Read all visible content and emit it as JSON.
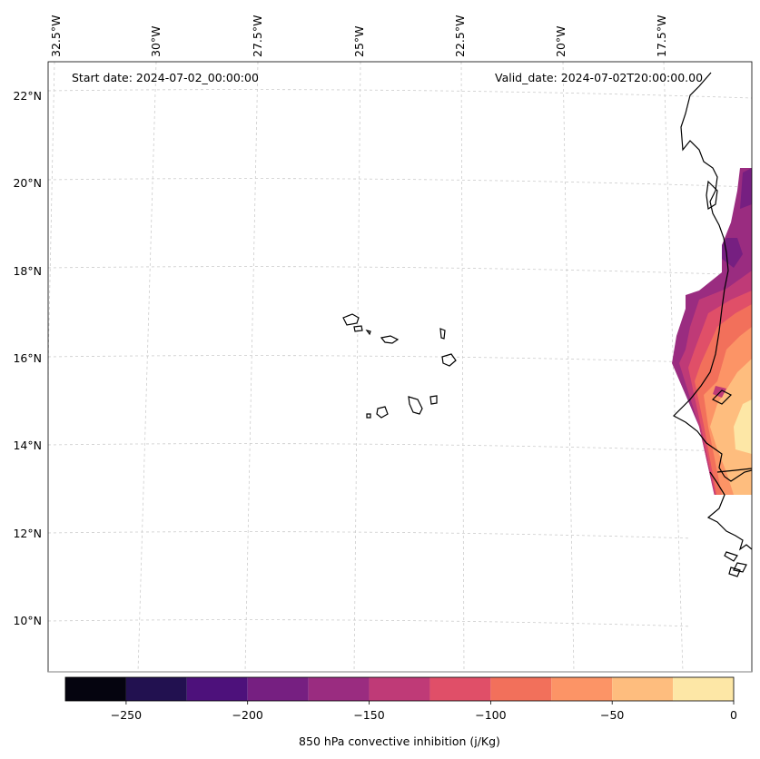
{
  "figure": {
    "start_date": "Start date: 2024-07-02_00:00:00",
    "valid_date": "Valid_date: 2024-07-02T20:00:00.00"
  },
  "map": {
    "projection_note": "Lambert-style conic projection over eastern tropical Atlantic",
    "longitude_labels": [
      "32.5°W",
      "30°W",
      "27.5°W",
      "25°W",
      "22.5°W",
      "20°W",
      "17.5°W"
    ],
    "latitude_labels": [
      "22°N",
      "20°N",
      "18°N",
      "16°N",
      "14°N",
      "12°N",
      "10°N"
    ],
    "gridlines": true,
    "coastline_color": "#000000"
  },
  "colorbar": {
    "label": "850 hPa convective inhibition (j/Kg)",
    "ticks": [
      "−250",
      "−200",
      "−150",
      "−100",
      "−50",
      "0"
    ],
    "range": [
      -275,
      0
    ],
    "levels": [
      -275,
      -250,
      -225,
      -200,
      -175,
      -150,
      -125,
      -100,
      -75,
      -50,
      -25,
      0
    ],
    "colors": [
      "#05040f",
      "#221150",
      "#4d117b",
      "#761f81",
      "#9a2c80",
      "#bf3a77",
      "#e04f68",
      "#f2705b",
      "#fc9466",
      "#febd7e",
      "#fde7a6"
    ]
  }
}
